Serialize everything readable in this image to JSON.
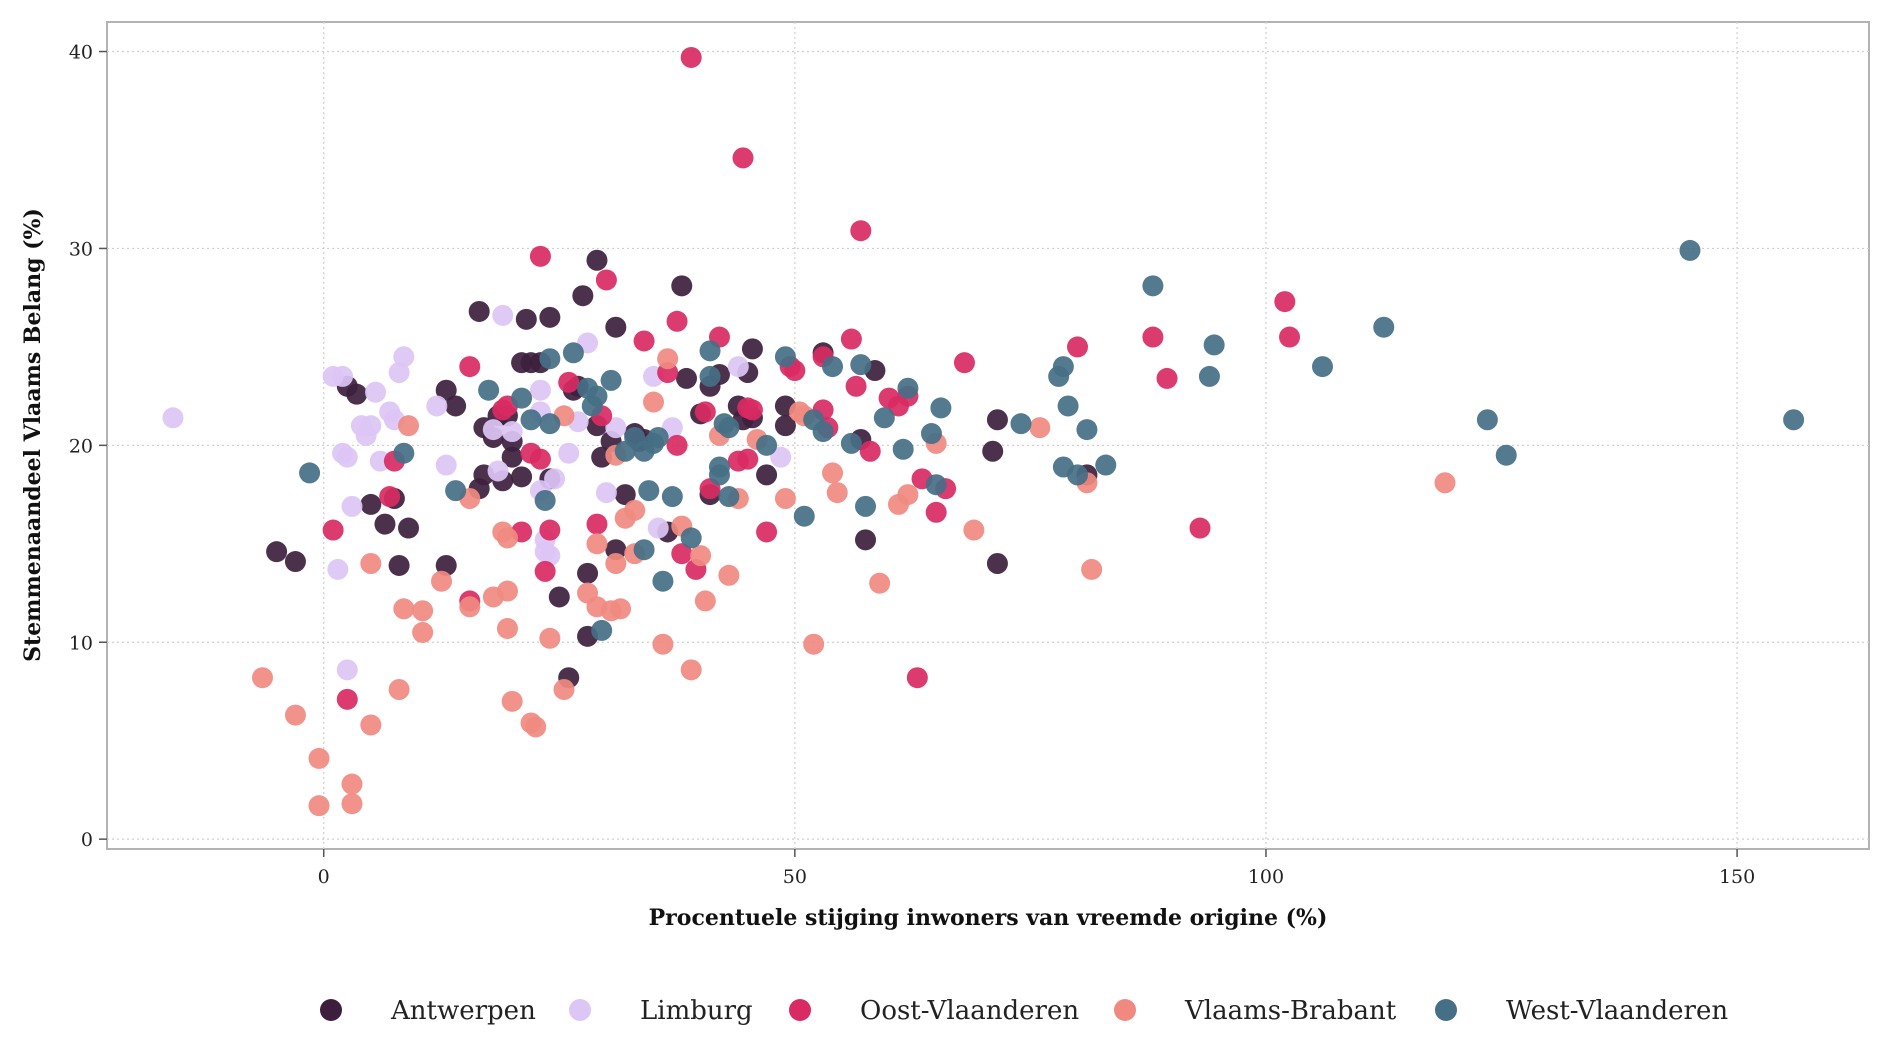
{
  "chart_data": {
    "type": "scatter",
    "xlabel": "Procentuele stijging inwoners van vreemde origine (%)",
    "ylabel": "Stemmenaandeel Vlaams Belang (%)",
    "xlim": [
      -23,
      164
    ],
    "ylim": [
      -0.5,
      41.5
    ],
    "x_ticks": [
      0,
      50,
      100,
      150
    ],
    "y_ticks": [
      0,
      10,
      20,
      30,
      40
    ],
    "grid": true,
    "legend_position": "bottom",
    "series": [
      {
        "name": "Antwerpen",
        "color": "#3d1f3d",
        "points": [
          [
            -5,
            14.6
          ],
          [
            -3,
            14.1
          ],
          [
            2.5,
            23
          ],
          [
            3.5,
            22.6
          ],
          [
            5,
            17
          ],
          [
            6.5,
            16
          ],
          [
            7.5,
            17.3
          ],
          [
            8,
            13.9
          ],
          [
            9,
            15.8
          ],
          [
            13,
            13.9
          ],
          [
            13,
            22.8
          ],
          [
            14,
            22
          ],
          [
            16.5,
            26.8
          ],
          [
            16.5,
            17.8
          ],
          [
            17,
            20.9
          ],
          [
            17,
            18.5
          ],
          [
            18,
            20.4
          ],
          [
            18.5,
            21.5
          ],
          [
            19,
            18.2
          ],
          [
            19.5,
            21.5
          ],
          [
            20,
            19.4
          ],
          [
            20,
            20.2
          ],
          [
            21,
            24.2
          ],
          [
            21,
            18.4
          ],
          [
            21.5,
            26.4
          ],
          [
            22,
            24.2
          ],
          [
            23,
            24.2
          ],
          [
            24,
            26.5
          ],
          [
            24,
            18.3
          ],
          [
            25,
            12.3
          ],
          [
            26,
            8.2
          ],
          [
            26.5,
            22.8
          ],
          [
            27,
            23
          ],
          [
            27.5,
            27.6
          ],
          [
            28,
            13.5
          ],
          [
            28,
            10.3
          ],
          [
            29,
            29.4
          ],
          [
            29,
            21
          ],
          [
            29.5,
            19.4
          ],
          [
            30.5,
            20.2
          ],
          [
            31,
            26
          ],
          [
            31,
            14.7
          ],
          [
            32,
            17.5
          ],
          [
            33,
            20.6
          ],
          [
            33.5,
            20.2
          ],
          [
            34,
            20.3
          ],
          [
            36.5,
            15.6
          ],
          [
            38,
            28.1
          ],
          [
            38.5,
            23.4
          ],
          [
            40,
            21.6
          ],
          [
            41,
            17.5
          ],
          [
            41,
            23
          ],
          [
            42,
            23.6
          ],
          [
            44,
            22
          ],
          [
            44.5,
            21.3
          ],
          [
            45,
            23.7
          ],
          [
            45.5,
            24.9
          ],
          [
            45.5,
            21.4
          ],
          [
            47,
            18.5
          ],
          [
            49,
            22
          ],
          [
            49,
            21
          ],
          [
            53,
            24.7
          ],
          [
            57,
            20.3
          ],
          [
            57.5,
            15.2
          ],
          [
            58.5,
            23.8
          ],
          [
            71,
            19.7
          ],
          [
            71.5,
            21.3
          ],
          [
            71.5,
            14
          ],
          [
            81,
            18.5
          ]
        ]
      },
      {
        "name": "Limburg",
        "color": "#dcc6f5",
        "points": [
          [
            -16,
            21.4
          ],
          [
            1,
            23.5
          ],
          [
            1.5,
            13.7
          ],
          [
            2,
            19.6
          ],
          [
            2,
            23.5
          ],
          [
            2.5,
            19.4
          ],
          [
            2.5,
            8.6
          ],
          [
            3,
            16.9
          ],
          [
            4,
            21
          ],
          [
            4.5,
            20.5
          ],
          [
            5,
            21
          ],
          [
            5.5,
            22.7
          ],
          [
            6,
            19.2
          ],
          [
            7,
            21.7
          ],
          [
            7.5,
            21.3
          ],
          [
            8,
            23.7
          ],
          [
            8.5,
            24.5
          ],
          [
            12,
            22
          ],
          [
            13,
            19
          ],
          [
            18,
            20.8
          ],
          [
            18.5,
            18.7
          ],
          [
            19,
            26.6
          ],
          [
            20,
            20.7
          ],
          [
            23,
            21.7
          ],
          [
            23,
            22.8
          ],
          [
            23,
            17.7
          ],
          [
            23.5,
            15.2
          ],
          [
            23.5,
            14.6
          ],
          [
            24,
            14.4
          ],
          [
            24.5,
            18.3
          ],
          [
            26,
            19.6
          ],
          [
            27,
            21.2
          ],
          [
            28,
            25.2
          ],
          [
            30,
            17.6
          ],
          [
            31,
            20.9
          ],
          [
            35,
            23.5
          ],
          [
            35.5,
            15.8
          ],
          [
            37,
            20.9
          ],
          [
            44,
            24
          ],
          [
            48.5,
            19.4
          ]
        ]
      },
      {
        "name": "Oost-Vlaanderen",
        "color": "#d92a63",
        "points": [
          [
            1,
            15.7
          ],
          [
            2.5,
            7.1
          ],
          [
            7,
            17.4
          ],
          [
            7.5,
            19.2
          ],
          [
            15.5,
            12.1
          ],
          [
            15.5,
            24
          ],
          [
            19,
            21.8
          ],
          [
            19.5,
            22
          ],
          [
            21,
            15.6
          ],
          [
            22,
            19.6
          ],
          [
            23,
            29.6
          ],
          [
            23,
            19.3
          ],
          [
            23.5,
            13.6
          ],
          [
            24,
            15.7
          ],
          [
            26,
            23.2
          ],
          [
            29,
            16
          ],
          [
            29.5,
            21.5
          ],
          [
            30,
            28.4
          ],
          [
            34,
            25.3
          ],
          [
            36.5,
            23.7
          ],
          [
            37.5,
            26.3
          ],
          [
            37.5,
            20
          ],
          [
            38,
            14.5
          ],
          [
            39,
            39.7
          ],
          [
            39.5,
            13.7
          ],
          [
            40.5,
            21.7
          ],
          [
            41,
            17.8
          ],
          [
            42,
            25.5
          ],
          [
            44,
            19.2
          ],
          [
            44.5,
            34.6
          ],
          [
            45,
            19.3
          ],
          [
            45,
            21.9
          ],
          [
            45.5,
            21.8
          ],
          [
            47,
            15.6
          ],
          [
            49.5,
            24
          ],
          [
            50,
            23.8
          ],
          [
            53,
            24.5
          ],
          [
            53,
            21.8
          ],
          [
            53.5,
            20.9
          ],
          [
            56,
            25.4
          ],
          [
            56.5,
            23
          ],
          [
            57,
            30.9
          ],
          [
            58,
            19.7
          ],
          [
            60,
            22.4
          ],
          [
            61,
            22
          ],
          [
            62,
            22.5
          ],
          [
            63,
            8.2
          ],
          [
            63.5,
            18.3
          ],
          [
            65,
            16.6
          ],
          [
            66,
            17.8
          ],
          [
            68,
            24.2
          ],
          [
            80,
            25
          ],
          [
            88,
            25.5
          ],
          [
            89.5,
            23.4
          ],
          [
            93,
            15.8
          ],
          [
            102,
            27.3
          ],
          [
            102.5,
            25.5
          ]
        ]
      },
      {
        "name": "Vlaams-Brabant",
        "color": "#f08a80",
        "points": [
          [
            -6.5,
            8.2
          ],
          [
            -3,
            6.3
          ],
          [
            -0.5,
            4.1
          ],
          [
            -0.5,
            1.7
          ],
          [
            3,
            2.8
          ],
          [
            3,
            1.8
          ],
          [
            5,
            14
          ],
          [
            5,
            5.8
          ],
          [
            8,
            7.6
          ],
          [
            8.5,
            11.7
          ],
          [
            9,
            21
          ],
          [
            10.5,
            10.5
          ],
          [
            10.5,
            11.6
          ],
          [
            12.5,
            13.1
          ],
          [
            15.5,
            11.8
          ],
          [
            15.5,
            17.3
          ],
          [
            18,
            12.3
          ],
          [
            19,
            15.6
          ],
          [
            19.5,
            15.3
          ],
          [
            19.5,
            12.6
          ],
          [
            19.5,
            10.7
          ],
          [
            20,
            7
          ],
          [
            22,
            5.9
          ],
          [
            22.5,
            5.7
          ],
          [
            24,
            10.2
          ],
          [
            25.5,
            21.5
          ],
          [
            25.5,
            7.6
          ],
          [
            28,
            12.5
          ],
          [
            29,
            11.8
          ],
          [
            29,
            15
          ],
          [
            30.5,
            11.6
          ],
          [
            31,
            14
          ],
          [
            31,
            19.5
          ],
          [
            31.5,
            11.7
          ],
          [
            32,
            16.3
          ],
          [
            33,
            16.7
          ],
          [
            33,
            14.5
          ],
          [
            35,
            22.2
          ],
          [
            36,
            9.9
          ],
          [
            36.5,
            24.4
          ],
          [
            38,
            15.9
          ],
          [
            39,
            8.6
          ],
          [
            40,
            14.4
          ],
          [
            40.5,
            12.1
          ],
          [
            42,
            20.5
          ],
          [
            43,
            13.4
          ],
          [
            44,
            17.3
          ],
          [
            46,
            20.3
          ],
          [
            49,
            17.3
          ],
          [
            50.5,
            21.7
          ],
          [
            51,
            21.5
          ],
          [
            52,
            9.9
          ],
          [
            54,
            18.6
          ],
          [
            54.5,
            17.6
          ],
          [
            59,
            13
          ],
          [
            61,
            17
          ],
          [
            62,
            17.5
          ],
          [
            65,
            20.1
          ],
          [
            69,
            15.7
          ],
          [
            76,
            20.9
          ],
          [
            81,
            18.1
          ],
          [
            81.5,
            13.7
          ],
          [
            119,
            18.1
          ]
        ]
      },
      {
        "name": "West-Vlaanderen",
        "color": "#456f86",
        "points": [
          [
            -1.5,
            18.6
          ],
          [
            8.5,
            19.6
          ],
          [
            14,
            17.7
          ],
          [
            17.5,
            22.8
          ],
          [
            21,
            22.4
          ],
          [
            22,
            21.3
          ],
          [
            23.5,
            17.2
          ],
          [
            24,
            21.1
          ],
          [
            24,
            24.4
          ],
          [
            26.5,
            24.7
          ],
          [
            28,
            22.9
          ],
          [
            28.5,
            22
          ],
          [
            29,
            22.5
          ],
          [
            29.5,
            10.6
          ],
          [
            30.5,
            23.3
          ],
          [
            32,
            19.7
          ],
          [
            33,
            20.4
          ],
          [
            34,
            14.7
          ],
          [
            34,
            19.7
          ],
          [
            34.5,
            17.7
          ],
          [
            35,
            20.1
          ],
          [
            35.5,
            20.4
          ],
          [
            36,
            13.1
          ],
          [
            37,
            17.4
          ],
          [
            39,
            15.3
          ],
          [
            41,
            24.8
          ],
          [
            41,
            23.5
          ],
          [
            42,
            18.9
          ],
          [
            42,
            18.5
          ],
          [
            42.5,
            21.1
          ],
          [
            43,
            20.9
          ],
          [
            43,
            17.4
          ],
          [
            47,
            20
          ],
          [
            49,
            24.5
          ],
          [
            51,
            16.4
          ],
          [
            52,
            21.3
          ],
          [
            53,
            20.7
          ],
          [
            54,
            24
          ],
          [
            56,
            20.1
          ],
          [
            57,
            24.1
          ],
          [
            57.5,
            16.9
          ],
          [
            59.5,
            21.4
          ],
          [
            61.5,
            19.8
          ],
          [
            62,
            22.9
          ],
          [
            64.5,
            20.6
          ],
          [
            65,
            18
          ],
          [
            65.5,
            21.9
          ],
          [
            74,
            21.1
          ],
          [
            78,
            23.5
          ],
          [
            78.5,
            24
          ],
          [
            78.5,
            18.9
          ],
          [
            79,
            22
          ],
          [
            80,
            18.5
          ],
          [
            81,
            20.8
          ],
          [
            83,
            19
          ],
          [
            88,
            28.1
          ],
          [
            94,
            23.5
          ],
          [
            94.5,
            25.1
          ],
          [
            106,
            24
          ],
          [
            112.5,
            26
          ],
          [
            123.5,
            21.3
          ],
          [
            125.5,
            19.5
          ],
          [
            145,
            29.9
          ],
          [
            156,
            21.3
          ]
        ]
      }
    ]
  }
}
